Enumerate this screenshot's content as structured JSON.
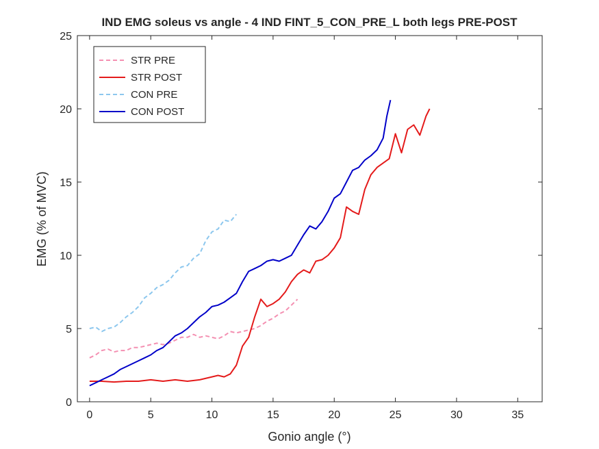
{
  "chart_data": {
    "type": "line",
    "title": "IND EMG soleus vs angle - 4 IND FINT_5_CON_PRE_L both legs PRE-POST",
    "xlabel": "Gonio angle (°)",
    "ylabel": "EMG (% of MVC)",
    "xlim": [
      -1,
      37
    ],
    "ylim": [
      0,
      25
    ],
    "xticks": [
      0,
      5,
      10,
      15,
      20,
      25,
      30,
      35
    ],
    "yticks": [
      0,
      5,
      10,
      15,
      20,
      25
    ],
    "grid": false,
    "legend_position": "top-left",
    "series": [
      {
        "name": "STR PRE",
        "color": "#f48fb1",
        "style": "dashed",
        "points": [
          [
            0,
            3.0
          ],
          [
            0.5,
            3.2
          ],
          [
            1,
            3.5
          ],
          [
            1.5,
            3.6
          ],
          [
            2,
            3.4
          ],
          [
            2.5,
            3.5
          ],
          [
            3,
            3.5
          ],
          [
            3.5,
            3.7
          ],
          [
            4,
            3.7
          ],
          [
            4.5,
            3.8
          ],
          [
            5,
            3.9
          ],
          [
            5.5,
            4.0
          ],
          [
            6,
            3.9
          ],
          [
            6.5,
            4.0
          ],
          [
            7,
            4.2
          ],
          [
            7.5,
            4.4
          ],
          [
            8,
            4.4
          ],
          [
            8.5,
            4.6
          ],
          [
            9,
            4.4
          ],
          [
            9.5,
            4.5
          ],
          [
            10,
            4.4
          ],
          [
            10.5,
            4.3
          ],
          [
            11,
            4.5
          ],
          [
            11.5,
            4.8
          ],
          [
            12,
            4.7
          ],
          [
            12.5,
            4.8
          ],
          [
            13,
            4.9
          ],
          [
            13.5,
            5.0
          ],
          [
            14,
            5.2
          ],
          [
            14.5,
            5.5
          ],
          [
            15,
            5.7
          ],
          [
            15.5,
            6.0
          ],
          [
            16,
            6.2
          ],
          [
            16.5,
            6.6
          ],
          [
            17,
            7.0
          ]
        ]
      },
      {
        "name": "STR POST",
        "color": "#e41a1a",
        "style": "solid",
        "points": [
          [
            0,
            1.4
          ],
          [
            1,
            1.4
          ],
          [
            2,
            1.35
          ],
          [
            3,
            1.4
          ],
          [
            4,
            1.4
          ],
          [
            5,
            1.5
          ],
          [
            6,
            1.4
          ],
          [
            7,
            1.5
          ],
          [
            8,
            1.4
          ],
          [
            9,
            1.5
          ],
          [
            10,
            1.7
          ],
          [
            10.5,
            1.8
          ],
          [
            11,
            1.7
          ],
          [
            11.5,
            1.9
          ],
          [
            12,
            2.5
          ],
          [
            12.5,
            3.8
          ],
          [
            13,
            4.4
          ],
          [
            13.5,
            5.8
          ],
          [
            14,
            7.0
          ],
          [
            14.5,
            6.5
          ],
          [
            15,
            6.7
          ],
          [
            15.5,
            7.0
          ],
          [
            16,
            7.5
          ],
          [
            16.5,
            8.2
          ],
          [
            17,
            8.7
          ],
          [
            17.5,
            9.0
          ],
          [
            18,
            8.8
          ],
          [
            18.5,
            9.6
          ],
          [
            19,
            9.7
          ],
          [
            19.5,
            10.0
          ],
          [
            20,
            10.5
          ],
          [
            20.5,
            11.2
          ],
          [
            21,
            13.3
          ],
          [
            21.5,
            13.0
          ],
          [
            22,
            12.8
          ],
          [
            22.5,
            14.5
          ],
          [
            23,
            15.5
          ],
          [
            23.5,
            16.0
          ],
          [
            24,
            16.3
          ],
          [
            24.5,
            16.6
          ],
          [
            25,
            18.3
          ],
          [
            25.5,
            17.0
          ],
          [
            26,
            18.6
          ],
          [
            26.5,
            18.9
          ],
          [
            27,
            18.2
          ],
          [
            27.5,
            19.5
          ],
          [
            27.8,
            20.0
          ]
        ]
      },
      {
        "name": "CON PRE",
        "color": "#8cc7ee",
        "style": "dashed",
        "points": [
          [
            0,
            5.0
          ],
          [
            0.5,
            5.1
          ],
          [
            1,
            4.8
          ],
          [
            1.5,
            5.0
          ],
          [
            2,
            5.1
          ],
          [
            2.5,
            5.4
          ],
          [
            3,
            5.8
          ],
          [
            3.5,
            6.1
          ],
          [
            4,
            6.5
          ],
          [
            4.5,
            7.1
          ],
          [
            5,
            7.4
          ],
          [
            5.5,
            7.8
          ],
          [
            6,
            8.0
          ],
          [
            6.5,
            8.3
          ],
          [
            7,
            8.8
          ],
          [
            7.5,
            9.2
          ],
          [
            8,
            9.3
          ],
          [
            8.5,
            9.8
          ],
          [
            9,
            10.1
          ],
          [
            9.5,
            11.0
          ],
          [
            10,
            11.6
          ],
          [
            10.5,
            11.8
          ],
          [
            11,
            12.4
          ],
          [
            11.5,
            12.3
          ],
          [
            12,
            12.8
          ]
        ]
      },
      {
        "name": "CON POST",
        "color": "#0000c8",
        "style": "solid",
        "points": [
          [
            0,
            1.1
          ],
          [
            0.5,
            1.3
          ],
          [
            1,
            1.5
          ],
          [
            1.5,
            1.7
          ],
          [
            2,
            1.9
          ],
          [
            2.5,
            2.2
          ],
          [
            3,
            2.4
          ],
          [
            3.5,
            2.6
          ],
          [
            4,
            2.8
          ],
          [
            4.5,
            3.0
          ],
          [
            5,
            3.2
          ],
          [
            5.5,
            3.5
          ],
          [
            6,
            3.7
          ],
          [
            6.5,
            4.1
          ],
          [
            7,
            4.5
          ],
          [
            7.5,
            4.7
          ],
          [
            8,
            5.0
          ],
          [
            8.5,
            5.4
          ],
          [
            9,
            5.8
          ],
          [
            9.5,
            6.1
          ],
          [
            10,
            6.5
          ],
          [
            10.5,
            6.6
          ],
          [
            11,
            6.8
          ],
          [
            11.5,
            7.1
          ],
          [
            12,
            7.4
          ],
          [
            12.5,
            8.2
          ],
          [
            13,
            8.9
          ],
          [
            13.5,
            9.1
          ],
          [
            14,
            9.3
          ],
          [
            14.5,
            9.6
          ],
          [
            15,
            9.7
          ],
          [
            15.5,
            9.6
          ],
          [
            16,
            9.8
          ],
          [
            16.5,
            10.0
          ],
          [
            17,
            10.7
          ],
          [
            17.5,
            11.4
          ],
          [
            18,
            12.0
          ],
          [
            18.5,
            11.8
          ],
          [
            19,
            12.3
          ],
          [
            19.5,
            13.0
          ],
          [
            20,
            13.9
          ],
          [
            20.5,
            14.2
          ],
          [
            21,
            15.0
          ],
          [
            21.5,
            15.8
          ],
          [
            22,
            16.0
          ],
          [
            22.5,
            16.5
          ],
          [
            23,
            16.8
          ],
          [
            23.5,
            17.2
          ],
          [
            24,
            18.0
          ],
          [
            24.3,
            19.5
          ],
          [
            24.6,
            20.6
          ]
        ]
      }
    ]
  }
}
